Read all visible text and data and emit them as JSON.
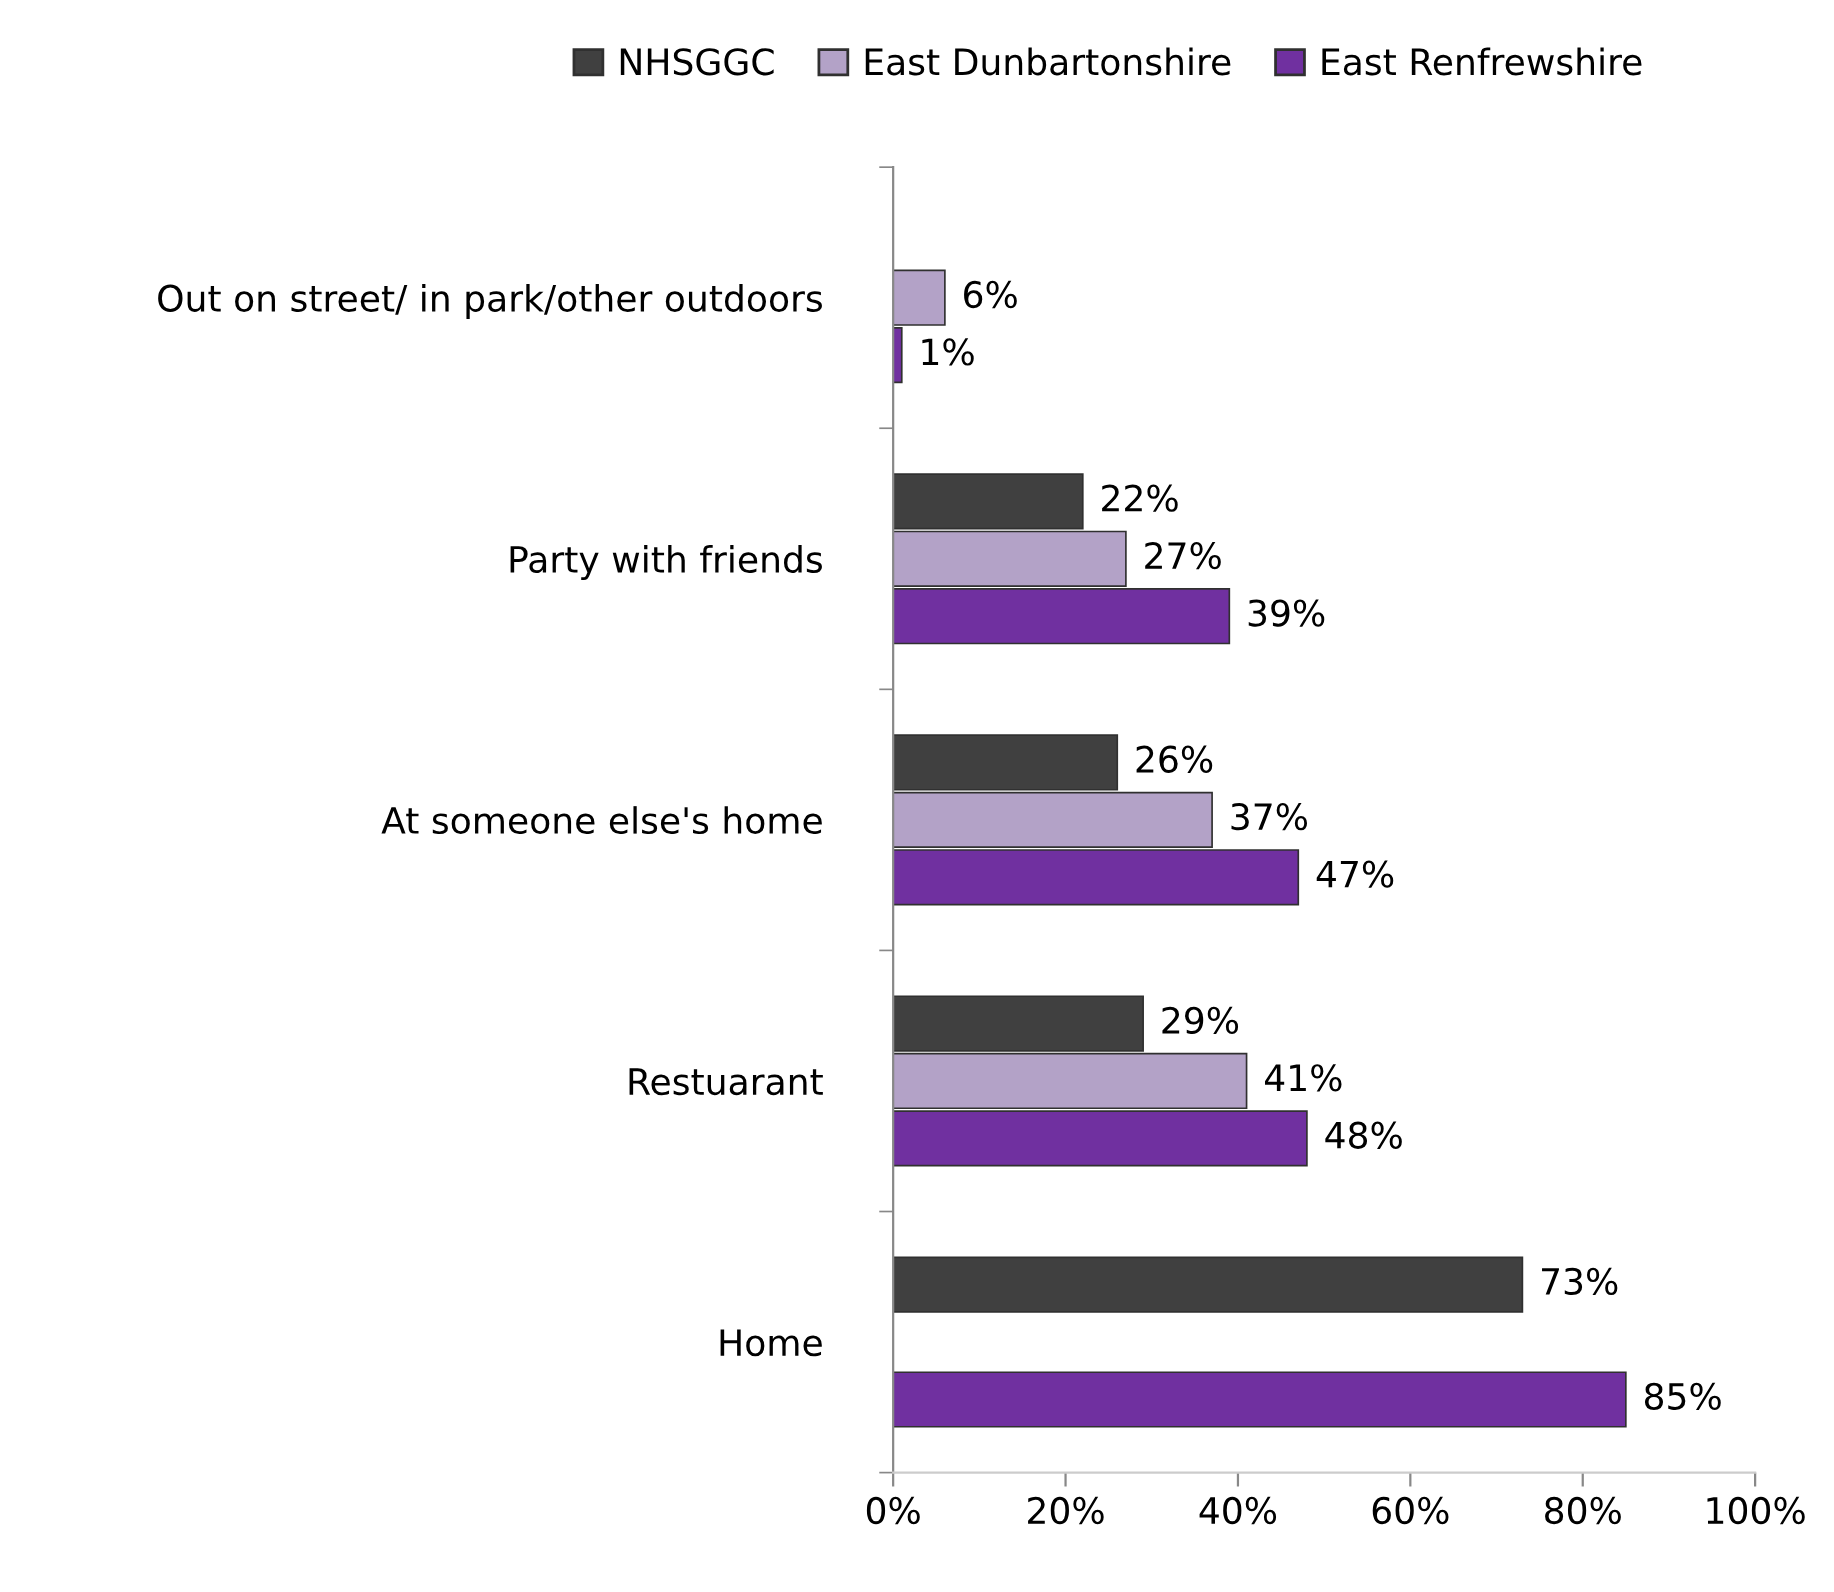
{
  "chart_data": {
    "type": "bar",
    "orientation": "horizontal",
    "categories": [
      "Out on street/ in park/other outdoors",
      "Party with friends",
      "At someone else's home",
      "Restuarant",
      "Home"
    ],
    "series": [
      {
        "name": "NHSGGC",
        "color": "#404040",
        "values": [
          null,
          22,
          26,
          29,
          73
        ],
        "value_labels": [
          null,
          "22%",
          "26%",
          "29%",
          "73%"
        ]
      },
      {
        "name": "East Dunbartonshire",
        "color": "#b3a2c7",
        "values": [
          6,
          27,
          37,
          41,
          null
        ],
        "value_labels": [
          "6%",
          "27%",
          "37%",
          "41%",
          null
        ]
      },
      {
        "name": "East Renfrewshire",
        "color": "#7030a0",
        "values": [
          1,
          39,
          47,
          48,
          85
        ],
        "value_labels": [
          "1%",
          "39%",
          "47%",
          "48%",
          "85%"
        ]
      }
    ],
    "xlim": [
      0,
      100
    ],
    "xticks": [
      {
        "value": 0,
        "label": "0%"
      },
      {
        "value": 20,
        "label": "20%"
      },
      {
        "value": 40,
        "label": "40%"
      },
      {
        "value": 60,
        "label": "60%"
      },
      {
        "value": 80,
        "label": "80%"
      },
      {
        "value": 100,
        "label": "100%"
      }
    ],
    "grid": false,
    "legend": "top"
  }
}
